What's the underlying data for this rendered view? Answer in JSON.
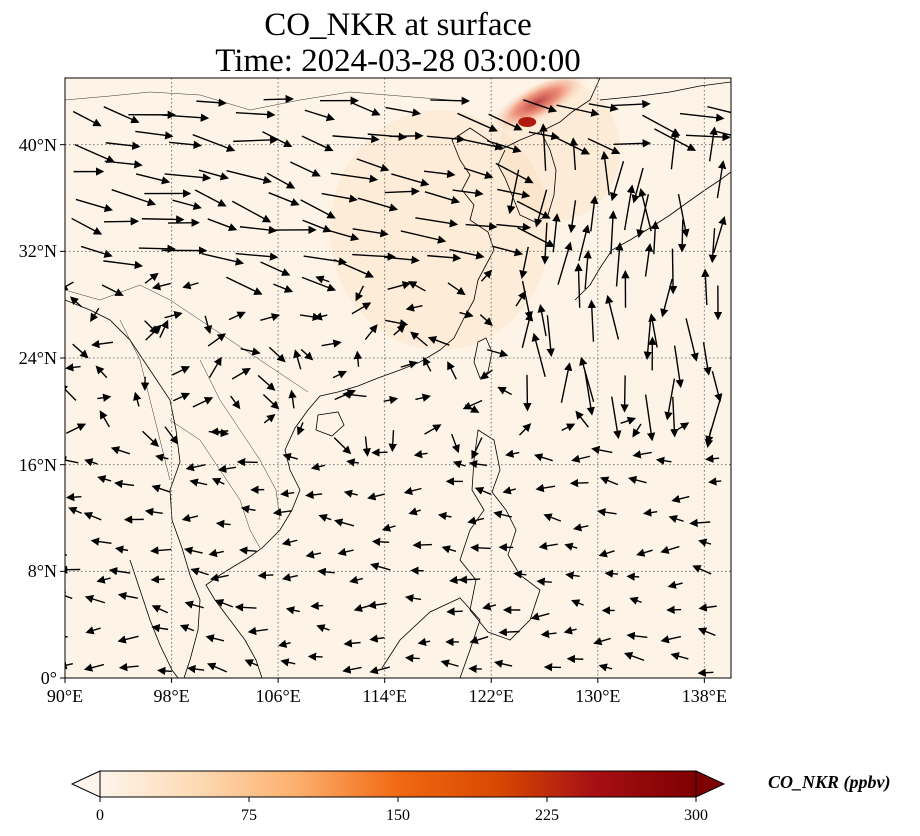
{
  "title": {
    "line1": "CO_NKR at surface",
    "line2": "Time: 2024-03-28 03:00:00"
  },
  "map": {
    "lon_range": [
      90,
      140
    ],
    "lat_range": [
      0,
      45
    ],
    "projection": "PlateCarree",
    "background_color": "#fdf4e7",
    "gridline_style": "dotted grey",
    "lat_ticks": [
      {
        "value": 0,
        "label": "0°"
      },
      {
        "value": 8,
        "label": "8°N"
      },
      {
        "value": 16,
        "label": "16°N"
      },
      {
        "value": 24,
        "label": "24°N"
      },
      {
        "value": 32,
        "label": "32°N"
      },
      {
        "value": 40,
        "label": "40°N"
      }
    ],
    "lon_ticks": [
      {
        "value": 90,
        "label": "90°E"
      },
      {
        "value": 98,
        "label": "98°E"
      },
      {
        "value": 106,
        "label": "106°E"
      },
      {
        "value": 114,
        "label": "114°E"
      },
      {
        "value": 122,
        "label": "122°E"
      },
      {
        "value": 130,
        "label": "130°E"
      },
      {
        "value": 138,
        "label": "138°E"
      }
    ],
    "plume": {
      "lon": 124.7,
      "lat": 41.7,
      "peak_ppbv": 300,
      "color": "#b0170e"
    }
  },
  "colorbar": {
    "label": "CO_NKR (ppbv)",
    "min": 0,
    "max": 300,
    "extend": "both",
    "ticks": [
      "0",
      "75",
      "150",
      "225",
      "300"
    ],
    "colormap": [
      "#fff5eb",
      "#fdd9b3",
      "#fdae6b",
      "#f16913",
      "#d94801",
      "#a50f15",
      "#7f0000"
    ]
  }
}
